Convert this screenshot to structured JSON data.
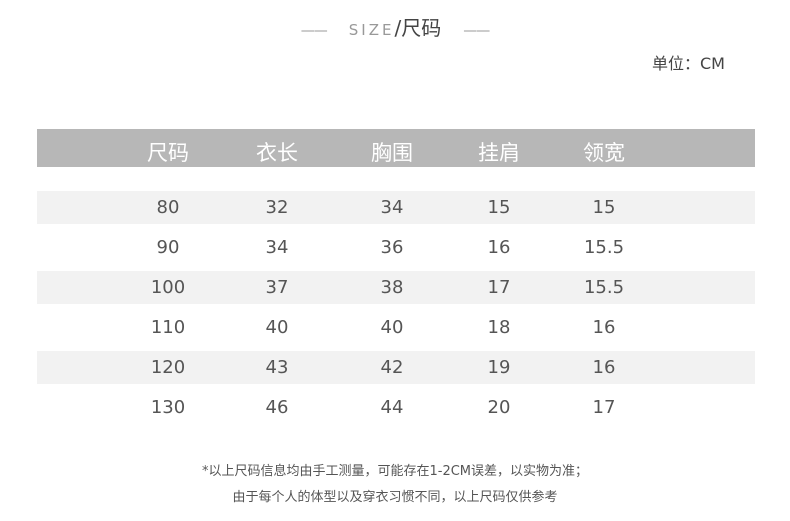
{
  "title": {
    "dash_left": "——",
    "en": "SIZE",
    "sep": "/",
    "zh": "尺码",
    "dash_right": "——"
  },
  "unit": "单位：CM",
  "table": {
    "headers": [
      "尺码",
      "衣长",
      "胸围",
      "挂肩",
      "领宽"
    ],
    "rows": [
      [
        "80",
        "32",
        "34",
        "15",
        "15"
      ],
      [
        "90",
        "34",
        "36",
        "16",
        "15.5"
      ],
      [
        "100",
        "37",
        "38",
        "17",
        "15.5"
      ],
      [
        "110",
        "40",
        "40",
        "18",
        "16"
      ],
      [
        "120",
        "43",
        "42",
        "19",
        "16"
      ],
      [
        "130",
        "46",
        "44",
        "20",
        "17"
      ]
    ]
  },
  "notes": [
    "*以上尺码信息均由手工测量，可能存在1-2CM误差，以实物为准；",
    "由于每个人的体型以及穿衣习惯不同，以上尺码仅供参考"
  ],
  "colors": {
    "header_bg": "#b7b7b7",
    "stripe_bg": "#f2f2f2"
  }
}
